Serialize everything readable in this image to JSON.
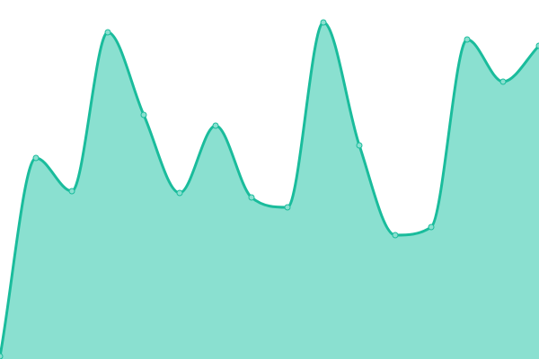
{
  "chart_data": {
    "type": "area",
    "x": [
      0,
      1,
      2,
      3,
      4,
      5,
      6,
      7,
      8,
      9,
      10,
      11,
      12,
      13,
      14,
      15
    ],
    "values": [
      3,
      224,
      187,
      364,
      272,
      185,
      260,
      180,
      169,
      375,
      238,
      138,
      147,
      356,
      309,
      349
    ],
    "ylim": [
      0,
      400
    ],
    "xlim": [
      0,
      15
    ],
    "grid": false,
    "axes_visible": false,
    "smooth": true,
    "markers": true,
    "colors": {
      "line": "#1abc9c",
      "fill": "#8ae0d0",
      "marker_fill": "#8ae0d0",
      "marker_stroke": "#1abc9c"
    }
  }
}
